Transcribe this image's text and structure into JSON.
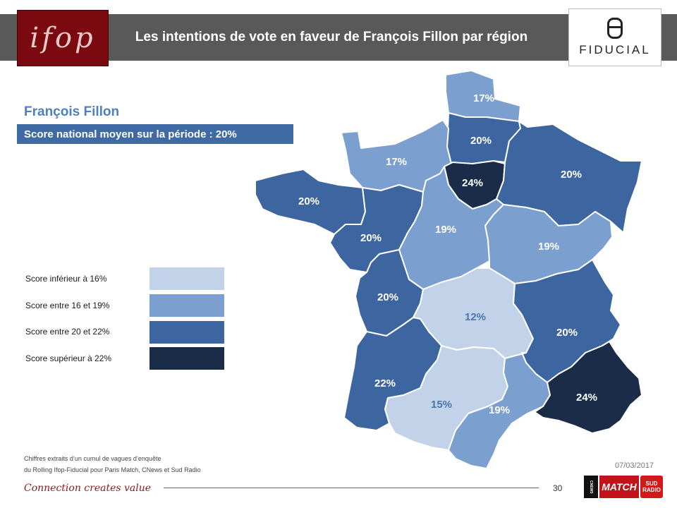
{
  "header": {
    "logo_text": "ifop",
    "title": "Les intentions de vote en faveur de François Fillon par région",
    "partner_logo_text": "FIDUCIAL"
  },
  "candidate": "François Fillon",
  "national_score": "Score national moyen sur la période : 20%",
  "legend": [
    {
      "label": "Score inférieur à 16%",
      "color": "#c2d3e9"
    },
    {
      "label": "Score entre 16 et 19%",
      "color": "#7b9fcf"
    },
    {
      "label": "Score entre 20 et 22%",
      "color": "#3d659f"
    },
    {
      "label": "Score supérieur à 22%",
      "color": "#1b2c48"
    }
  ],
  "regions": [
    {
      "name": "nord",
      "value": "17%",
      "color": "#7b9fcf",
      "text_color": "#ffffff"
    },
    {
      "name": "picardie",
      "value": "20%",
      "color": "#3d659f",
      "text_color": "#ffffff"
    },
    {
      "name": "normandie",
      "value": "17%",
      "color": "#7b9fcf",
      "text_color": "#ffffff"
    },
    {
      "name": "ile-de-france",
      "value": "24%",
      "color": "#1b2c48",
      "text_color": "#ffffff"
    },
    {
      "name": "est",
      "value": "20%",
      "color": "#3d659f",
      "text_color": "#ffffff"
    },
    {
      "name": "bretagne",
      "value": "20%",
      "color": "#3d659f",
      "text_color": "#ffffff"
    },
    {
      "name": "pays-de-la-loire",
      "value": "20%",
      "color": "#3d659f",
      "text_color": "#ffffff"
    },
    {
      "name": "centre",
      "value": "19%",
      "color": "#7b9fcf",
      "text_color": "#ffffff"
    },
    {
      "name": "bourgogne-franche-comte",
      "value": "19%",
      "color": "#7b9fcf",
      "text_color": "#ffffff"
    },
    {
      "name": "poitou-charentes",
      "value": "20%",
      "color": "#3d659f",
      "text_color": "#ffffff"
    },
    {
      "name": "limousin-auvergne",
      "value": "12%",
      "color": "#c2d3e9",
      "text_color": "#4a74b0"
    },
    {
      "name": "rhone-alpes",
      "value": "20%",
      "color": "#3d659f",
      "text_color": "#ffffff"
    },
    {
      "name": "aquitaine",
      "value": "22%",
      "color": "#3d659f",
      "text_color": "#ffffff"
    },
    {
      "name": "midi-pyrenees",
      "value": "15%",
      "color": "#c2d3e9",
      "text_color": "#4a74b0"
    },
    {
      "name": "languedoc-roussillon",
      "value": "19%",
      "color": "#7b9fcf",
      "text_color": "#ffffff"
    },
    {
      "name": "paca",
      "value": "24%",
      "color": "#1b2c48",
      "text_color": "#ffffff"
    }
  ],
  "footnote_line1": "Chiffres extraits d’un cumul de vagues d’enquête",
  "footnote_line2": "du Rolling Ifop-Fiducial pour Paris Match, CNews et Sud Radio",
  "date": "07/03/2017",
  "tagline": "Connection creates value",
  "page_number": "30",
  "media": {
    "a": "CNEWS",
    "b": "MATCH",
    "c": "SUD RADIO"
  }
}
